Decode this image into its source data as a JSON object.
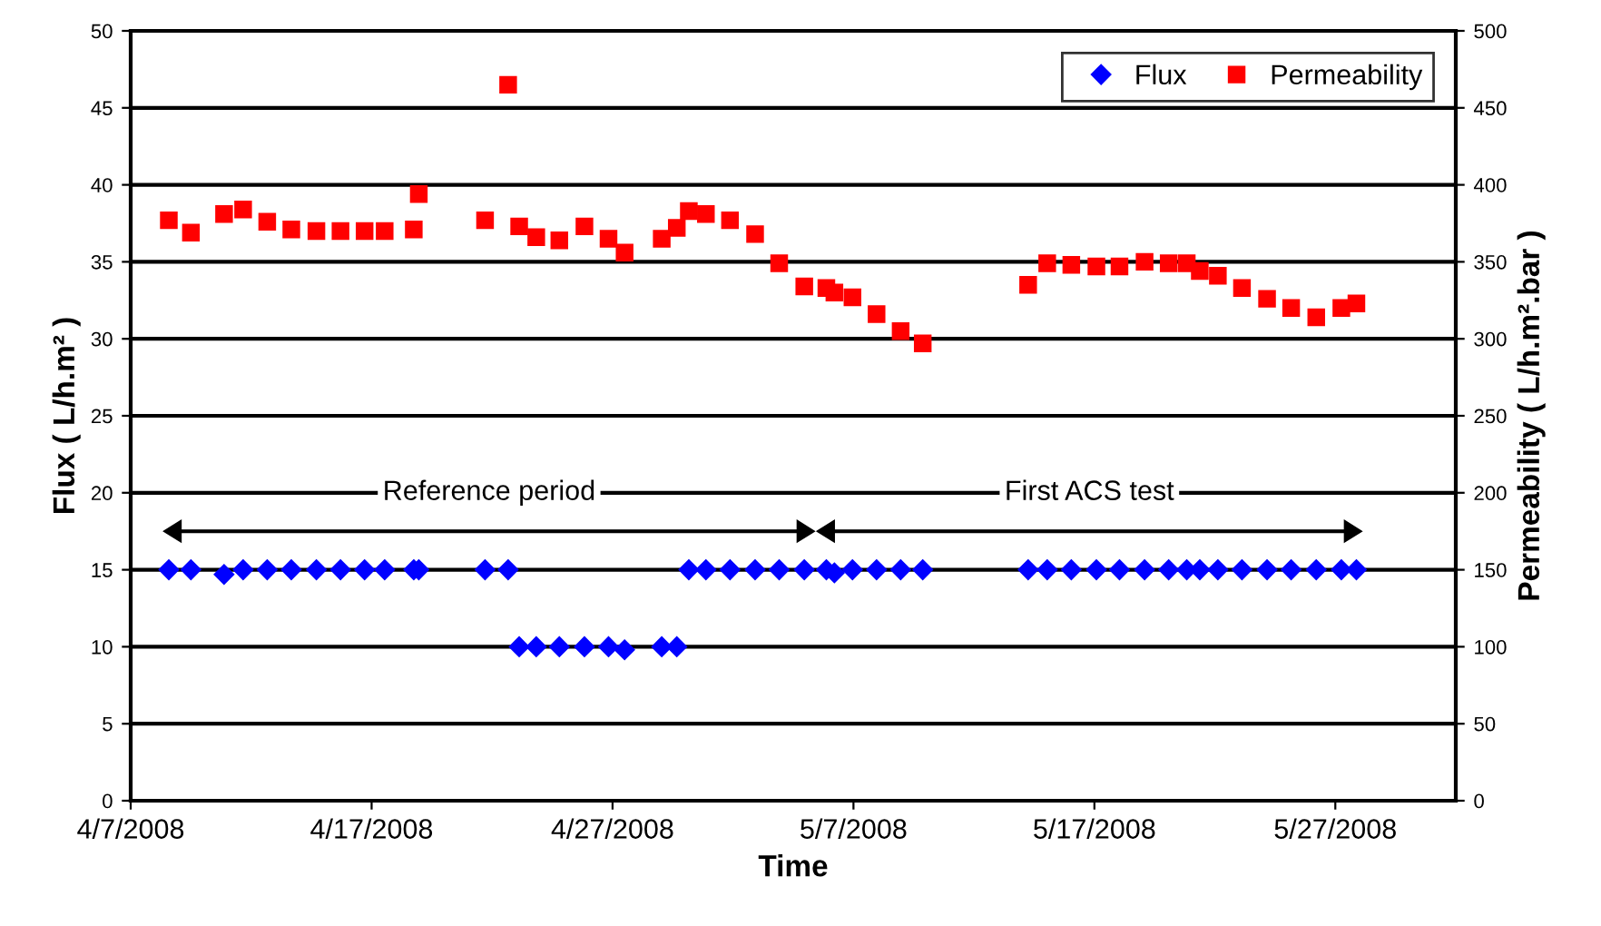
{
  "chart_data": {
    "type": "scatter",
    "xlabel": "Time",
    "ylabel": "Flux ( L/h.m² )",
    "y2label": "Permeability ( L/h.m².bar )",
    "x": [
      "2008-04-08T14:00",
      "2008-04-09T12:00",
      "2008-04-10T21:00",
      "2008-04-11T16:00",
      "2008-04-12T16:00",
      "2008-04-13T16:00",
      "2008-04-14T17:00",
      "2008-04-15T17:00",
      "2008-04-16T17:00",
      "2008-04-17T13:00",
      "2008-04-18T18:00",
      "2008-04-18T23:00",
      "2008-04-21T17:00",
      "2008-04-22T16:00",
      "2008-04-23T03:00",
      "2008-04-23T20:00",
      "2008-04-24T19:00",
      "2008-04-25T20:00",
      "2008-04-26T20:00",
      "2008-04-27T12:00",
      "2008-04-29T01:00",
      "2008-04-29T16:00",
      "2008-04-30T04:00",
      "2008-04-30T21:00",
      "2008-05-01T21:00",
      "2008-05-02T22:00",
      "2008-05-03T22:00",
      "2008-05-04T23:00",
      "2008-05-05T21:00",
      "2008-05-06T05:00",
      "2008-05-06T23:00",
      "2008-05-07T23:00",
      "2008-05-08T23:00",
      "2008-05-09T21:00",
      "2008-05-14T06:00",
      "2008-05-15T01:00",
      "2008-05-16T01:00",
      "2008-05-17T02:00",
      "2008-05-18T01:00",
      "2008-05-19T02:00",
      "2008-05-20T02:00",
      "2008-05-20T20:00",
      "2008-05-21T09:00",
      "2008-05-22T03:00",
      "2008-05-23T03:00",
      "2008-05-24T04:00",
      "2008-05-25T04:00",
      "2008-05-26T05:00",
      "2008-05-27T06:00",
      "2008-05-27T21:00"
    ],
    "series": [
      {
        "name": "Flux",
        "color": "#0000ff",
        "marker": "diamond",
        "values": [
          15,
          15,
          14.7,
          15,
          15,
          15,
          15,
          15,
          15,
          15,
          15,
          15,
          15,
          15,
          10,
          10,
          10,
          10,
          10,
          9.8,
          10,
          10,
          15,
          15,
          15,
          15,
          15,
          15,
          15,
          14.8,
          15,
          15,
          15,
          15,
          15,
          15,
          15,
          15,
          15,
          15,
          15,
          15,
          15,
          15,
          15,
          15,
          15,
          15,
          15,
          15
        ]
      },
      {
        "name": "Permeability",
        "color": "#ff0000",
        "marker": "square",
        "axis": "y2",
        "values": [
          377,
          369,
          381,
          384,
          376,
          371,
          370,
          370,
          370,
          370,
          371,
          394,
          377,
          465,
          373,
          366,
          364,
          373,
          365,
          356,
          365,
          372,
          383,
          381,
          377,
          368,
          349,
          334,
          333,
          330,
          327,
          316,
          305,
          297,
          335,
          349,
          348,
          347,
          347,
          350,
          349,
          349,
          344,
          341,
          333,
          326,
          320,
          314,
          320,
          323
        ]
      }
    ],
    "xlim": [
      "2008-04-07",
      "2008-06-01"
    ],
    "xticks": [
      {
        "value": "2008-04-07",
        "label": "4/7/2008"
      },
      {
        "value": "2008-04-17",
        "label": "4/17/2008"
      },
      {
        "value": "2008-04-27",
        "label": "4/27/2008"
      },
      {
        "value": "2008-05-07",
        "label": "5/7/2008"
      },
      {
        "value": "2008-05-17",
        "label": "5/17/2008"
      },
      {
        "value": "2008-05-27",
        "label": "5/27/2008"
      }
    ],
    "ylim": [
      0,
      50
    ],
    "yticks": [
      0,
      5,
      10,
      15,
      20,
      25,
      30,
      35,
      40,
      45,
      50
    ],
    "y2lim": [
      0,
      500
    ],
    "y2ticks": [
      0,
      50,
      100,
      150,
      200,
      250,
      300,
      350,
      400,
      450,
      500
    ],
    "annotations": [
      "Reference period",
      "First ACS test"
    ],
    "grid": "y",
    "legend": "top right"
  }
}
